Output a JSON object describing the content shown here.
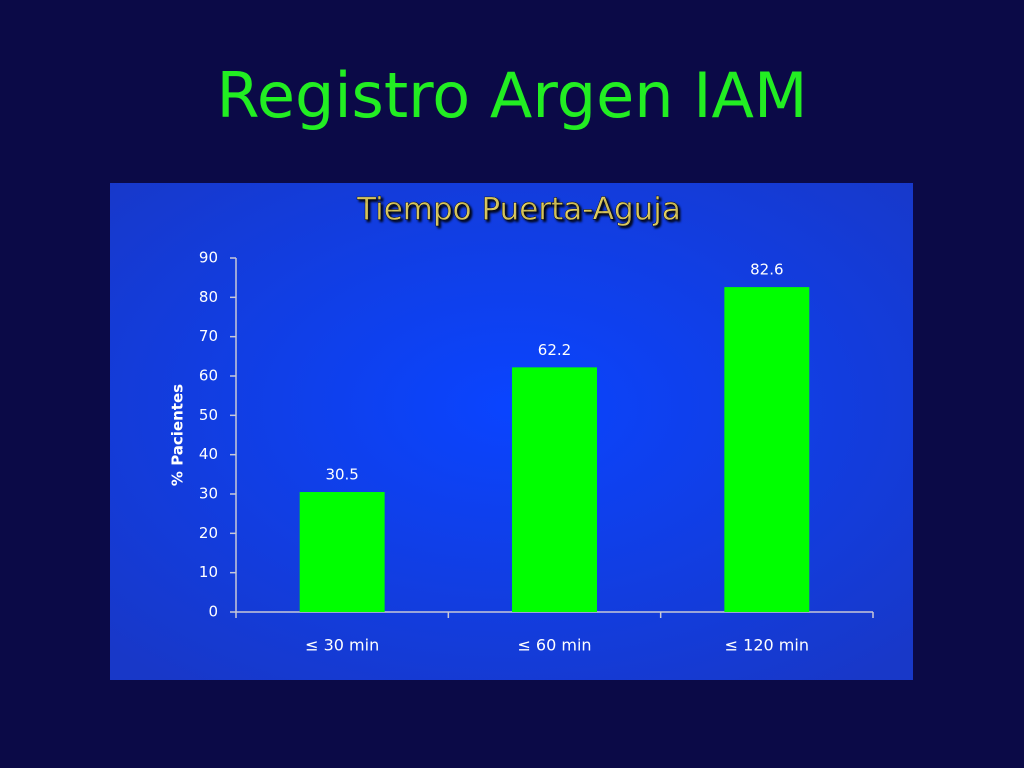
{
  "slide_title": "Registro Argen IAM",
  "chart_data": {
    "type": "bar",
    "title": "Tiempo Puerta-Aguja",
    "y_label": "% Pacientes",
    "categories": [
      "≤ 30 min",
      "≤ 60 min",
      "≤ 120 min"
    ],
    "values": [
      30.5,
      62.2,
      82.6
    ],
    "color": "#00ff00",
    "ylim": [
      0,
      90
    ],
    "yticks": [
      0,
      10,
      20,
      30,
      40,
      50,
      60,
      70,
      80,
      90
    ],
    "grid": false
  }
}
